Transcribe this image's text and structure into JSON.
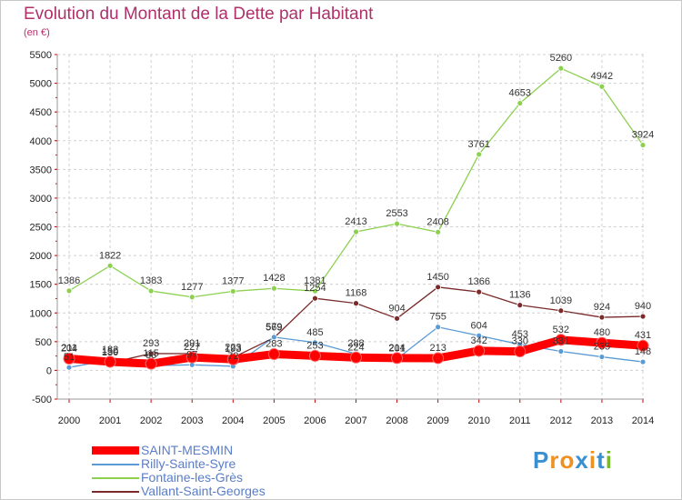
{
  "title": "Evolution du Montant de la Dette par Habitant",
  "unit": "(en €)",
  "logo": {
    "letters": [
      "P",
      "r",
      "o",
      "x",
      "i",
      "t",
      "i"
    ],
    "colors": [
      "#3a8fd0",
      "#f09020",
      "#f09020",
      "#3a8fd0",
      "#f09020",
      "#3a8fd0",
      "#7ab830"
    ]
  },
  "chart_data": {
    "type": "line",
    "x": [
      "2000",
      "2001",
      "2002",
      "2003",
      "2004",
      "2005",
      "2006",
      "2007",
      "2008",
      "2009",
      "2010",
      "2011",
      "2012",
      "2013",
      "2014"
    ],
    "ylim": [
      -500,
      5500
    ],
    "yticks": [
      "-500",
      "0",
      "500",
      "1000",
      "1500",
      "2000",
      "2500",
      "3000",
      "3500",
      "4000",
      "4500",
      "5000",
      "5500"
    ],
    "grid": true,
    "legend_position": "bottom-left",
    "series": [
      {
        "name": "SAINT-MESMIN",
        "color": "#ff0000",
        "values": [
          204,
          150,
          115,
          227,
          193,
          283,
          253,
          224,
          214,
          213,
          342,
          330,
          532,
          480,
          431
        ],
        "labels": [
          "204",
          "150",
          "115",
          "227",
          "193",
          "283",
          "253",
          "224",
          "214",
          "213",
          "342",
          "330",
          "532",
          "480",
          "431"
        ]
      },
      {
        "name": "Rilly-Sainte-Syre",
        "color": "#5b9bd5",
        "values": [
          51,
          182,
          83,
          97,
          72,
          579,
          485,
          288,
          201,
          755,
          604,
          453,
          331,
          235,
          148
        ],
        "labels": [
          "51",
          "182",
          "83",
          "97",
          "72",
          "579",
          "485",
          "288",
          "201",
          "755",
          "604",
          "453",
          "331",
          "235",
          "148"
        ]
      },
      {
        "name": "Fontaine-les-Grès",
        "color": "#8cd050",
        "values": [
          1386,
          1822,
          1383,
          1277,
          1377,
          1428,
          1381,
          2413,
          2553,
          2408,
          3761,
          4653,
          5260,
          4942,
          3924
        ],
        "labels": [
          "1386",
          "1822",
          "1383",
          "1277",
          "1377",
          "1428",
          "1381",
          "2413",
          "2553",
          "2408",
          "3761",
          "4653",
          "5260",
          "4942",
          "3924"
        ]
      },
      {
        "name": "Vallant-Saint-Georges",
        "color": "#7a2a2a",
        "values": [
          211,
          130,
          293,
          291,
          223,
          569,
          1254,
          1168,
          904,
          1450,
          1366,
          1136,
          1039,
          924,
          940
        ],
        "labels": [
          "211",
          "130",
          "293",
          "291",
          "223",
          "569",
          "1254",
          "1168",
          "904",
          "1450",
          "1366",
          "1136",
          "1039",
          "924",
          "940"
        ]
      }
    ]
  }
}
